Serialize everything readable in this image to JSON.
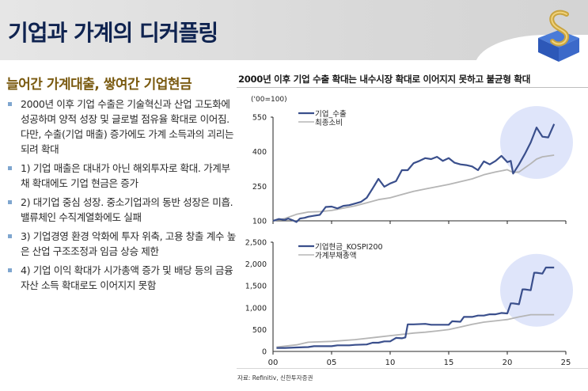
{
  "header": {
    "title": "기업과 가계의 디커플링",
    "logo_icon": "gold-s-cube-logo"
  },
  "left_panel": {
    "section_title": "늘어간 가계대출, 쌓여간 기업현금",
    "bullets": [
      "2000년 이후 기업 수출은 기술혁신과 산업 고도화에 성공하며 양적 성장 및 글로벌 점유율 확대로 이어짐. 다만, 수출(기업 매출) 증가에도 가계 소득과의 괴리는 되려 확대",
      "1) 기업 매출은 대내가 아닌 해외투자로 확대. 가계부채 확대에도 기업 현금은 증가",
      "2) 대기업 중심 성장. 중소기업과의 동반 성장은 미흡. 밸류체인 수직계열화에도 실패",
      "3) 기업경영 환경 악화에 투자 위축, 고용 창출 계수 높은 산업 구조조정과 임금 상승 제한",
      "4) 기업 이익 확대가 시가총액 증가 및 배당 등의 금융자산 소득 확대로도 이어지지 못함"
    ]
  },
  "right_panel": {
    "chart_title": "2000년 이후 기업 수출 확대는 내수시장 확대로 이어지지 못하고 불균형 확대",
    "source": "자료: Refinitiv, 신한투자증권"
  },
  "colors": {
    "title_navy": "#0f2350",
    "section_gold": "#7a5a10",
    "series_blue": "#3a4f8c",
    "series_gray": "#b5b5b5",
    "highlight_circle": "#dfe5fa",
    "bullet_marker": "#7fa6cf"
  },
  "chart_data": [
    {
      "type": "line",
      "title": "",
      "unit_label": "('00=100)",
      "xlabel": "",
      "ylabel": "",
      "ylim": [
        100,
        550
      ],
      "yticks": [
        "550",
        "400",
        "250",
        "100"
      ],
      "ytick_values": [
        550,
        400,
        250,
        100
      ],
      "xlim": [
        0,
        25
      ],
      "xtick_values": [
        0,
        5,
        10,
        15,
        20,
        25
      ],
      "grid": false,
      "legend_position": "top-left",
      "highlight": {
        "shape": "circle",
        "x_center": 22.5,
        "y_center": 440
      },
      "series": [
        {
          "name": "기업_수출",
          "color": "#3a4f8c",
          "x": [
            0,
            0.5,
            1,
            1.3,
            1.7,
            2,
            2.3,
            2.7,
            3,
            3.5,
            4,
            4.5,
            5,
            5.5,
            6,
            6.5,
            7,
            7.5,
            8,
            8.5,
            9,
            9.5,
            10,
            10.5,
            11,
            11.5,
            12,
            12.5,
            13,
            13.5,
            14,
            14.5,
            15,
            15.5,
            16,
            16.5,
            17,
            17.5,
            18,
            18.5,
            19,
            19.5,
            20,
            20.3,
            20.5,
            21,
            21.5,
            22,
            22.5,
            23,
            23.5,
            24
          ],
          "values": [
            100,
            108,
            104,
            110,
            102,
            95,
            110,
            113,
            118,
            122,
            126,
            160,
            162,
            154,
            165,
            168,
            175,
            182,
            200,
            240,
            282,
            248,
            262,
            272,
            320,
            320,
            350,
            360,
            372,
            368,
            378,
            360,
            372,
            352,
            345,
            342,
            336,
            320,
            358,
            345,
            360,
            382,
            355,
            360,
            305,
            345,
            390,
            440,
            505,
            465,
            462,
            520
          ]
        },
        {
          "name": "최종소비",
          "color": "#b5b5b5",
          "x": [
            0,
            1,
            2,
            3,
            4,
            5,
            6,
            7,
            8,
            9,
            10,
            11,
            12,
            13,
            14,
            15,
            16,
            17,
            18,
            19,
            20,
            20.5,
            21,
            21.5,
            22,
            22.5,
            23,
            24
          ],
          "values": [
            100,
            110,
            128,
            138,
            140,
            145,
            155,
            165,
            178,
            192,
            200,
            214,
            228,
            238,
            248,
            258,
            270,
            282,
            300,
            312,
            322,
            310,
            312,
            330,
            348,
            368,
            378,
            385
          ]
        }
      ]
    },
    {
      "type": "line",
      "title": "",
      "xlabel": "",
      "ylabel": "",
      "ylim": [
        0,
        2500
      ],
      "yticks": [
        "2,500",
        "2,000",
        "1,500",
        "1,000",
        "500",
        "0"
      ],
      "ytick_values": [
        2500,
        2000,
        1500,
        1000,
        500,
        0
      ],
      "xlim": [
        0,
        25
      ],
      "xticks": [
        "00",
        "05",
        "10",
        "15",
        "20",
        "25"
      ],
      "xtick_values": [
        0,
        5,
        10,
        15,
        20,
        25
      ],
      "grid": false,
      "legend_position": "top-left",
      "highlight": {
        "shape": "circle",
        "x_center": 22.5,
        "y_center": 1400
      },
      "series": [
        {
          "name": "기업현금_KOSPI200",
          "color": "#3a4f8c",
          "x": [
            0.3,
            1,
            2,
            3,
            3.5,
            5,
            5.5,
            6.5,
            7,
            8,
            8.5,
            9,
            9.5,
            10,
            10.5,
            11,
            11.3,
            11.5,
            12,
            13,
            13.5,
            15,
            15.3,
            16,
            16.3,
            17,
            17.5,
            18,
            18.5,
            19,
            19.5,
            20,
            20.3,
            20.5,
            21,
            21.3,
            21.5,
            22,
            22.3,
            22.5,
            23,
            23.3,
            24
          ],
          "values": [
            80,
            80,
            90,
            100,
            120,
            120,
            140,
            140,
            150,
            160,
            200,
            200,
            230,
            230,
            310,
            300,
            320,
            620,
            620,
            630,
            610,
            610,
            690,
            680,
            790,
            790,
            820,
            820,
            850,
            850,
            880,
            870,
            1100,
            1100,
            1080,
            1420,
            1420,
            1400,
            1800,
            1800,
            1780,
            1920,
            1920
          ]
        },
        {
          "name": "가계부채총액",
          "color": "#b5b5b5",
          "x": [
            0.3,
            2,
            3,
            5,
            7,
            9,
            10,
            11,
            12,
            13,
            14,
            15,
            16,
            17,
            18,
            19,
            20,
            21,
            22,
            23,
            24
          ],
          "values": [
            100,
            150,
            210,
            230,
            270,
            330,
            360,
            390,
            420,
            440,
            470,
            500,
            560,
            620,
            670,
            700,
            730,
            790,
            840,
            840,
            840
          ]
        }
      ]
    }
  ]
}
